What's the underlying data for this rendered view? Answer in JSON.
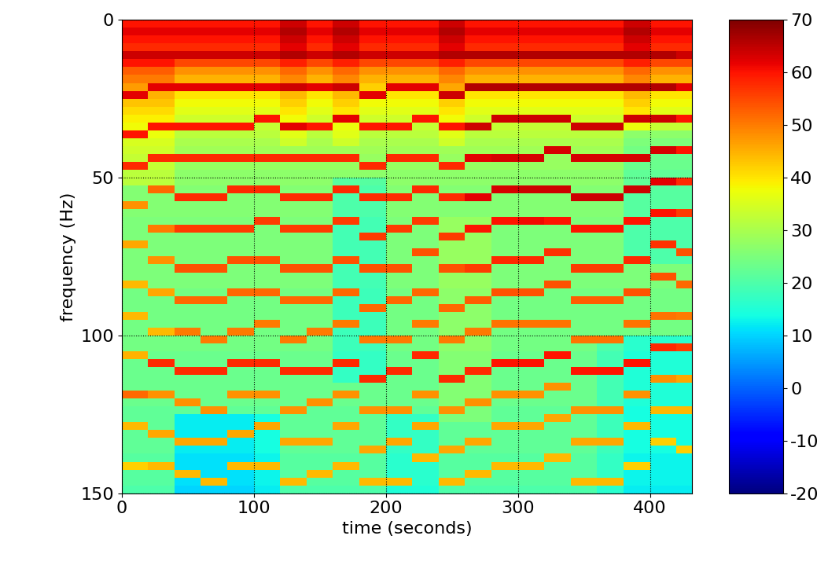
{
  "chart_data": {
    "type": "heatmap",
    "xlabel": "time (seconds)",
    "ylabel": "frequency (Hz)",
    "xlim": [
      0,
      432
    ],
    "ylim": [
      150,
      0
    ],
    "xticks": [
      0,
      100,
      200,
      300,
      400
    ],
    "yticks": [
      0,
      50,
      100,
      150
    ],
    "grid": true,
    "x_edges": [
      0,
      20,
      40,
      60,
      80,
      100,
      120,
      140,
      160,
      180,
      200,
      220,
      240,
      260,
      280,
      300,
      320,
      340,
      360,
      380,
      400,
      420,
      432
    ],
    "y_edges": [
      0,
      2.5,
      5,
      7.5,
      10,
      12.5,
      15,
      17.5,
      20,
      22.5,
      25,
      27.5,
      30,
      32.5,
      35,
      37.5,
      40,
      42.5,
      45,
      47.5,
      50,
      52.5,
      55,
      57.5,
      60,
      62.5,
      65,
      67.5,
      70,
      72.5,
      75,
      77.5,
      80,
      82.5,
      85,
      87.5,
      90,
      92.5,
      95,
      97.5,
      100,
      102.5,
      105,
      107.5,
      110,
      112.5,
      115,
      117.5,
      120,
      122.5,
      125,
      127.5,
      130,
      132.5,
      135,
      137.5,
      140,
      142.5,
      145,
      147.5,
      150
    ],
    "color_range": [
      -20,
      70
    ],
    "color_ticks": [
      -20,
      -10,
      0,
      10,
      20,
      30,
      40,
      50,
      60,
      70
    ],
    "cells_by_time": [
      [
        60,
        62,
        60,
        58,
        64,
        60,
        53,
        50,
        47,
        62,
        43,
        41,
        39,
        38,
        60,
        35,
        34,
        33,
        58,
        32,
        32,
        26,
        26,
        48,
        26,
        25,
        25,
        25,
        46,
        25,
        25,
        25,
        25,
        44,
        24,
        24,
        24,
        44,
        24,
        24,
        24,
        24,
        45,
        23,
        23,
        23,
        23,
        52,
        23,
        22,
        22,
        44,
        22,
        22,
        22,
        21,
        42,
        21,
        21,
        20
      ],
      [
        60,
        62,
        60,
        58,
        64,
        60,
        53,
        50,
        62,
        45,
        43,
        41,
        39,
        60,
        37,
        35,
        34,
        58,
        33,
        32,
        32,
        52,
        26,
        26,
        26,
        25,
        50,
        25,
        25,
        25,
        48,
        25,
        25,
        25,
        46,
        24,
        24,
        24,
        24,
        44,
        24,
        24,
        23,
        58,
        23,
        23,
        23,
        48,
        23,
        22,
        22,
        22,
        46,
        22,
        22,
        21,
        44,
        21,
        21,
        20
      ],
      [
        60,
        62,
        60,
        58,
        64,
        55,
        48,
        45,
        62,
        40,
        38,
        36,
        34,
        60,
        32,
        30,
        29,
        58,
        28,
        27,
        27,
        26,
        58,
        26,
        26,
        25,
        56,
        25,
        25,
        25,
        25,
        54,
        25,
        25,
        24,
        52,
        24,
        24,
        24,
        50,
        24,
        24,
        23,
        23,
        58,
        23,
        23,
        23,
        48,
        22,
        12,
        12,
        12,
        46,
        12,
        11,
        11,
        44,
        11,
        10
      ],
      [
        60,
        62,
        60,
        58,
        64,
        55,
        48,
        45,
        62,
        40,
        38,
        36,
        34,
        60,
        32,
        30,
        29,
        58,
        28,
        27,
        27,
        26,
        58,
        26,
        26,
        25,
        56,
        25,
        25,
        25,
        25,
        54,
        25,
        25,
        24,
        52,
        24,
        24,
        24,
        24,
        50,
        24,
        23,
        23,
        58,
        23,
        23,
        23,
        23,
        48,
        12,
        12,
        12,
        46,
        12,
        11,
        11,
        11,
        44,
        10
      ],
      [
        60,
        62,
        60,
        58,
        64,
        55,
        48,
        45,
        62,
        40,
        38,
        36,
        34,
        60,
        32,
        30,
        29,
        58,
        28,
        27,
        27,
        58,
        26,
        26,
        26,
        25,
        56,
        25,
        25,
        25,
        54,
        25,
        25,
        25,
        52,
        24,
        24,
        24,
        24,
        50,
        24,
        24,
        23,
        58,
        23,
        23,
        23,
        48,
        23,
        22,
        12,
        12,
        46,
        12,
        12,
        11,
        44,
        11,
        11,
        10
      ],
      [
        60,
        62,
        60,
        58,
        64,
        55,
        48,
        45,
        62,
        40,
        38,
        36,
        60,
        33,
        32,
        30,
        29,
        58,
        28,
        27,
        27,
        58,
        26,
        26,
        26,
        56,
        25,
        25,
        25,
        25,
        54,
        25,
        25,
        25,
        52,
        24,
        24,
        24,
        50,
        24,
        24,
        24,
        23,
        58,
        23,
        23,
        23,
        48,
        23,
        22,
        14,
        46,
        14,
        14,
        14,
        13,
        44,
        13,
        13,
        12
      ],
      [
        64,
        66,
        64,
        62,
        66,
        59,
        52,
        49,
        64,
        44,
        42,
        40,
        38,
        62,
        36,
        34,
        29,
        58,
        28,
        27,
        27,
        26,
        58,
        26,
        26,
        25,
        56,
        25,
        25,
        25,
        25,
        54,
        25,
        25,
        24,
        52,
        24,
        24,
        24,
        24,
        50,
        24,
        23,
        23,
        58,
        23,
        23,
        23,
        23,
        48,
        22,
        22,
        22,
        46,
        22,
        21,
        21,
        21,
        44,
        20
      ],
      [
        60,
        62,
        60,
        58,
        64,
        55,
        48,
        45,
        62,
        40,
        38,
        36,
        34,
        60,
        32,
        30,
        29,
        58,
        28,
        27,
        27,
        26,
        58,
        26,
        26,
        25,
        56,
        25,
        25,
        25,
        25,
        54,
        25,
        25,
        24,
        52,
        24,
        24,
        24,
        50,
        24,
        24,
        23,
        23,
        58,
        23,
        23,
        23,
        48,
        22,
        22,
        22,
        22,
        46,
        22,
        21,
        21,
        44,
        21,
        20
      ],
      [
        64,
        66,
        64,
        62,
        66,
        59,
        52,
        49,
        64,
        44,
        42,
        40,
        62,
        37,
        36,
        34,
        29,
        58,
        28,
        27,
        21,
        58,
        20,
        20,
        20,
        56,
        19,
        19,
        19,
        19,
        54,
        19,
        19,
        19,
        52,
        18,
        18,
        18,
        50,
        18,
        18,
        18,
        17,
        58,
        17,
        17,
        23,
        48,
        23,
        22,
        22,
        46,
        22,
        22,
        22,
        21,
        44,
        21,
        21,
        20
      ],
      [
        60,
        62,
        60,
        58,
        64,
        55,
        48,
        45,
        42,
        62,
        38,
        36,
        34,
        60,
        32,
        30,
        29,
        28,
        58,
        27,
        21,
        20,
        58,
        20,
        20,
        19,
        19,
        56,
        19,
        19,
        19,
        54,
        19,
        19,
        18,
        18,
        52,
        18,
        18,
        18,
        50,
        18,
        17,
        17,
        17,
        58,
        23,
        23,
        23,
        48,
        22,
        22,
        22,
        22,
        46,
        21,
        21,
        21,
        44,
        20
      ],
      [
        60,
        62,
        60,
        58,
        64,
        55,
        48,
        45,
        62,
        40,
        38,
        36,
        34,
        60,
        32,
        30,
        29,
        58,
        28,
        27,
        27,
        26,
        58,
        26,
        26,
        25,
        56,
        25,
        25,
        25,
        25,
        54,
        25,
        25,
        24,
        52,
        24,
        24,
        24,
        24,
        50,
        24,
        23,
        23,
        58,
        23,
        23,
        23,
        23,
        48,
        17,
        17,
        17,
        46,
        17,
        16,
        16,
        16,
        44,
        15
      ],
      [
        60,
        62,
        60,
        58,
        64,
        55,
        48,
        45,
        62,
        40,
        38,
        36,
        60,
        33,
        32,
        30,
        29,
        58,
        28,
        27,
        27,
        58,
        26,
        26,
        26,
        56,
        25,
        25,
        25,
        54,
        25,
        25,
        25,
        25,
        52,
        24,
        24,
        24,
        50,
        24,
        24,
        24,
        58,
        23,
        23,
        23,
        23,
        48,
        23,
        22,
        17,
        46,
        17,
        17,
        17,
        44,
        16,
        16,
        16,
        15
      ],
      [
        64,
        66,
        64,
        62,
        66,
        59,
        52,
        49,
        46,
        64,
        42,
        40,
        38,
        60,
        36,
        34,
        29,
        28,
        58,
        27,
        27,
        26,
        58,
        26,
        26,
        28,
        28,
        56,
        28,
        28,
        28,
        54,
        28,
        28,
        27,
        27,
        52,
        27,
        27,
        27,
        50,
        27,
        26,
        26,
        26,
        58,
        26,
        26,
        26,
        48,
        25,
        22,
        22,
        22,
        46,
        21,
        21,
        21,
        44,
        20
      ],
      [
        60,
        62,
        60,
        58,
        66,
        55,
        48,
        45,
        66,
        40,
        38,
        36,
        34,
        64,
        32,
        30,
        29,
        62,
        28,
        27,
        27,
        26,
        62,
        26,
        26,
        28,
        60,
        28,
        28,
        28,
        28,
        56,
        28,
        28,
        27,
        53,
        27,
        27,
        27,
        50,
        27,
        27,
        26,
        26,
        58,
        26,
        26,
        26,
        48,
        25,
        25,
        22,
        22,
        46,
        22,
        21,
        21,
        44,
        21,
        20
      ],
      [
        60,
        62,
        60,
        58,
        66,
        55,
        48,
        45,
        66,
        40,
        38,
        36,
        64,
        33,
        32,
        30,
        29,
        63,
        28,
        27,
        27,
        63,
        26,
        26,
        26,
        60,
        25,
        25,
        25,
        25,
        58,
        25,
        25,
        25,
        54,
        24,
        24,
        24,
        51,
        24,
        24,
        24,
        23,
        60,
        23,
        23,
        23,
        48,
        23,
        22,
        22,
        46,
        22,
        22,
        22,
        21,
        44,
        21,
        21,
        20
      ],
      [
        60,
        62,
        60,
        58,
        66,
        55,
        48,
        45,
        66,
        40,
        38,
        36,
        64,
        33,
        32,
        30,
        29,
        63,
        28,
        27,
        27,
        64,
        26,
        26,
        26,
        61,
        25,
        25,
        25,
        25,
        58,
        25,
        25,
        25,
        54,
        24,
        24,
        24,
        51,
        24,
        24,
        24,
        23,
        60,
        23,
        23,
        23,
        48,
        23,
        22,
        22,
        46,
        22,
        22,
        22,
        21,
        44,
        21,
        21,
        20
      ],
      [
        60,
        62,
        60,
        58,
        66,
        55,
        48,
        45,
        66,
        40,
        38,
        36,
        64,
        33,
        32,
        30,
        63,
        28,
        28,
        27,
        27,
        64,
        26,
        26,
        26,
        60,
        25,
        25,
        25,
        57,
        25,
        25,
        25,
        54,
        24,
        24,
        24,
        24,
        51,
        24,
        24,
        24,
        60,
        23,
        23,
        23,
        48,
        23,
        23,
        22,
        46,
        22,
        22,
        22,
        22,
        44,
        21,
        21,
        21,
        20
      ],
      [
        60,
        62,
        60,
        58,
        66,
        55,
        48,
        45,
        66,
        40,
        38,
        36,
        34,
        64,
        32,
        30,
        29,
        63,
        28,
        27,
        27,
        26,
        64,
        26,
        26,
        25,
        60,
        25,
        25,
        25,
        25,
        56,
        25,
        25,
        24,
        53,
        24,
        24,
        24,
        24,
        51,
        24,
        23,
        23,
        60,
        23,
        23,
        23,
        23,
        48,
        22,
        22,
        22,
        46,
        22,
        21,
        21,
        21,
        44,
        20
      ],
      [
        60,
        62,
        60,
        58,
        66,
        55,
        48,
        45,
        66,
        40,
        38,
        36,
        34,
        64,
        32,
        30,
        29,
        63,
        28,
        27,
        27,
        26,
        64,
        26,
        26,
        25,
        60,
        25,
        25,
        25,
        25,
        56,
        25,
        25,
        24,
        53,
        24,
        24,
        24,
        24,
        51,
        20,
        19,
        19,
        60,
        19,
        19,
        19,
        19,
        48,
        18,
        18,
        18,
        46,
        18,
        17,
        17,
        17,
        44,
        16
      ],
      [
        64,
        66,
        64,
        62,
        66,
        59,
        52,
        49,
        66,
        44,
        42,
        40,
        64,
        37,
        27,
        25,
        24,
        63,
        23,
        22,
        22,
        64,
        21,
        21,
        21,
        60,
        20,
        20,
        20,
        20,
        58,
        25,
        25,
        25,
        54,
        24,
        24,
        24,
        51,
        24,
        16,
        16,
        15,
        60,
        15,
        15,
        15,
        48,
        15,
        14,
        14,
        44,
        14,
        14,
        14,
        13,
        42,
        13,
        13,
        12
      ],
      [
        60,
        62,
        60,
        58,
        66,
        55,
        48,
        45,
        66,
        40,
        38,
        36,
        64,
        33,
        27,
        25,
        63,
        23,
        23,
        22,
        62,
        21,
        21,
        21,
        60,
        20,
        20,
        20,
        57,
        20,
        20,
        25,
        54,
        25,
        24,
        24,
        24,
        51,
        24,
        24,
        16,
        58,
        15,
        15,
        15,
        48,
        15,
        15,
        15,
        44,
        14,
        14,
        14,
        42,
        14,
        13,
        13,
        13,
        13,
        12
      ],
      [
        60,
        62,
        60,
        58,
        64,
        55,
        48,
        45,
        62,
        40,
        38,
        36,
        60,
        33,
        27,
        25,
        60,
        23,
        23,
        22,
        58,
        21,
        21,
        21,
        56,
        20,
        20,
        20,
        20,
        54,
        20,
        25,
        25,
        52,
        24,
        24,
        24,
        50,
        24,
        24,
        16,
        56,
        15,
        15,
        15,
        46,
        15,
        15,
        15,
        44,
        14,
        14,
        14,
        14,
        42,
        13,
        13,
        13,
        13,
        12
      ]
    ]
  }
}
